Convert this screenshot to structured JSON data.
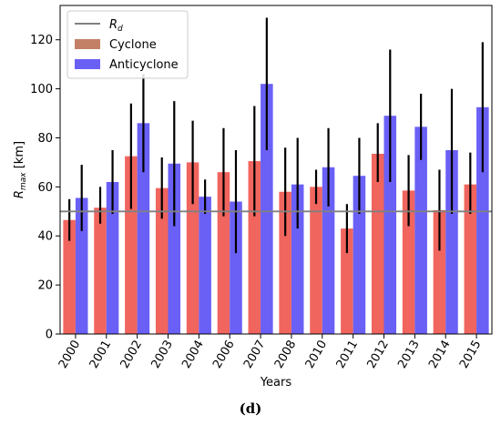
{
  "chart_data": {
    "type": "bar",
    "categories": [
      "2000",
      "2001",
      "2002",
      "2003",
      "2004",
      "2006",
      "2007",
      "2008",
      "2010",
      "2011",
      "2012",
      "2013",
      "2014",
      "2015"
    ],
    "series": [
      {
        "name": "Cyclone",
        "color": "#f0655e",
        "values": [
          46.5,
          51.5,
          72.5,
          59.5,
          70,
          66,
          70.5,
          58,
          60,
          43,
          73.5,
          58.5,
          50.5,
          61
        ],
        "err_low": [
          38,
          45,
          51,
          47,
          53,
          48,
          48,
          40,
          53,
          33,
          62,
          44,
          34,
          49
        ],
        "err_high": [
          55,
          60,
          94,
          72,
          87,
          84,
          93,
          76,
          67,
          53,
          86,
          73,
          67,
          74
        ]
      },
      {
        "name": "Anticyclone",
        "color": "#6a60f6",
        "values": [
          55.5,
          62,
          86,
          69.5,
          56,
          54,
          102,
          61,
          68,
          64.5,
          89,
          84.5,
          75,
          92.5
        ],
        "err_low": [
          42,
          49,
          66,
          44,
          49,
          33,
          75,
          43,
          52,
          49,
          62,
          71,
          49,
          66
        ],
        "err_high": [
          69,
          75,
          106,
          95,
          63,
          75,
          129,
          80,
          84,
          80,
          116,
          98,
          100,
          119
        ]
      }
    ],
    "reference_line": {
      "name": "R_d",
      "value": 50,
      "color": "#808080"
    },
    "xlabel": "Years",
    "ylabel": "R_max [km]",
    "ylim": [
      0,
      134
    ],
    "yticks": [
      0,
      20,
      40,
      60,
      80,
      100,
      120
    ],
    "legend_placement": "top-left",
    "legend_patch_color": "#c48067",
    "panel_label": "(d)"
  }
}
